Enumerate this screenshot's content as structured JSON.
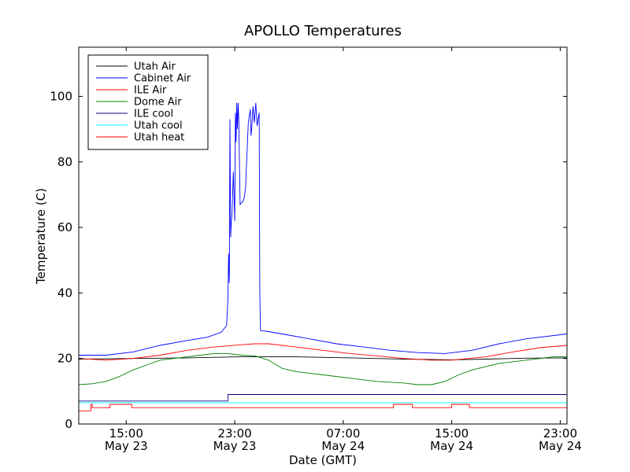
{
  "chart_data": {
    "type": "line",
    "title": "APOLLO Temperatures",
    "xlabel": "Date (GMT)",
    "ylabel": "Temperature (C)",
    "x_unit": "hours since May 23 10:50 GMT",
    "xlim": [
      0,
      36
    ],
    "ylim": [
      0,
      115
    ],
    "yticks": [
      0,
      20,
      40,
      60,
      80,
      100
    ],
    "xticks": [
      {
        "x": 3.5,
        "time": "15:00",
        "date": "May 23"
      },
      {
        "x": 11.5,
        "time": "23:00",
        "date": "May 23"
      },
      {
        "x": 19.5,
        "time": "07:00",
        "date": "May 24"
      },
      {
        "x": 27.5,
        "time": "15:00",
        "date": "May 24"
      },
      {
        "x": 35.5,
        "time": "23:00",
        "date": "May 24"
      }
    ],
    "legend": {
      "location": "upper-left"
    },
    "series": [
      {
        "name": "Utah Air",
        "color": "#000000",
        "x": [
          0,
          4,
          8,
          12,
          16,
          20,
          24,
          27.5,
          30,
          33,
          36
        ],
        "y": [
          19.8,
          20,
          20.2,
          20.5,
          20.5,
          20.2,
          19.8,
          19.6,
          19.8,
          20.1,
          20.2
        ]
      },
      {
        "name": "Cabinet Air",
        "color": "#0000ff",
        "x": [
          0,
          2,
          4,
          6,
          8,
          9.5,
          10.5,
          10.9,
          11.0,
          11.05,
          11.1,
          11.15,
          11.2,
          11.25,
          11.3,
          11.4,
          11.5,
          11.55,
          11.6,
          11.65,
          11.7,
          11.75,
          11.8,
          11.9,
          12.0,
          12.1,
          12.2,
          12.3,
          12.5,
          12.65,
          12.7,
          12.75,
          12.85,
          12.95,
          13.05,
          13.15,
          13.3,
          13.35,
          13.4,
          13.5,
          14.0,
          15,
          17,
          19,
          21,
          23,
          25,
          27,
          29,
          31,
          33,
          36
        ],
        "y": [
          21,
          21,
          22,
          24,
          25.5,
          26.5,
          28,
          30,
          38,
          52,
          43,
          93,
          57,
          62,
          64,
          77,
          62,
          95,
          86,
          98,
          90,
          98,
          93,
          67,
          67.5,
          68,
          69,
          72,
          92,
          96,
          88,
          90,
          97,
          92,
          98,
          91,
          95,
          40,
          28.5,
          28.5,
          28.2,
          27.5,
          26,
          24.5,
          23.5,
          22.5,
          21.8,
          21.5,
          22.5,
          24.5,
          26,
          27.5
        ]
      },
      {
        "name": "ILE Air",
        "color": "#ff0000",
        "x": [
          0,
          2,
          4,
          6,
          8,
          10,
          12,
          13,
          14,
          16,
          18,
          20,
          22,
          24,
          26,
          27.5,
          30,
          32,
          34,
          36
        ],
        "y": [
          20,
          19.5,
          20,
          21,
          22.5,
          23.5,
          24.2,
          24.5,
          24.5,
          23.5,
          22.5,
          21.5,
          20.8,
          20,
          19.5,
          19.5,
          20.5,
          22,
          23.3,
          24
        ]
      },
      {
        "name": "Dome Air",
        "color": "#008000",
        "x": [
          0,
          1,
          2,
          3,
          4,
          5,
          6,
          7,
          8,
          9,
          10,
          11,
          12,
          13,
          14,
          15,
          16,
          17,
          18,
          20,
          22,
          24,
          25,
          26,
          27,
          28,
          29,
          30,
          31,
          32,
          33,
          34,
          35,
          36
        ],
        "y": [
          12,
          12.3,
          13,
          14.5,
          16.5,
          18,
          19.5,
          20,
          20.5,
          21,
          21.5,
          21.5,
          21,
          20.8,
          19.5,
          17,
          16,
          15.5,
          15,
          14,
          13,
          12.5,
          12,
          12,
          13,
          15,
          16.5,
          17.5,
          18.5,
          19,
          19.5,
          20,
          20.5,
          20.5
        ]
      },
      {
        "name": "ILE cool",
        "color": "#000080",
        "x": [
          0,
          11,
          11,
          36
        ],
        "y": [
          7,
          7,
          9,
          9
        ]
      },
      {
        "name": "Utah cool",
        "color": "#00ffff",
        "x": [
          0,
          36
        ],
        "y": [
          6.5,
          6.5
        ]
      },
      {
        "name": "Utah heat",
        "color": "#ff0000",
        "x": [
          0,
          0.9,
          0.9,
          1.0,
          1.0,
          2.3,
          2.3,
          3.9,
          3.9,
          23.2,
          23.2,
          24.6,
          24.6,
          27.5,
          27.5,
          28.8,
          28.8,
          36
        ],
        "y": [
          4,
          4,
          6,
          6,
          5,
          5,
          6,
          6,
          5,
          5,
          6,
          6,
          5,
          5,
          6,
          6,
          5,
          5
        ]
      }
    ]
  }
}
